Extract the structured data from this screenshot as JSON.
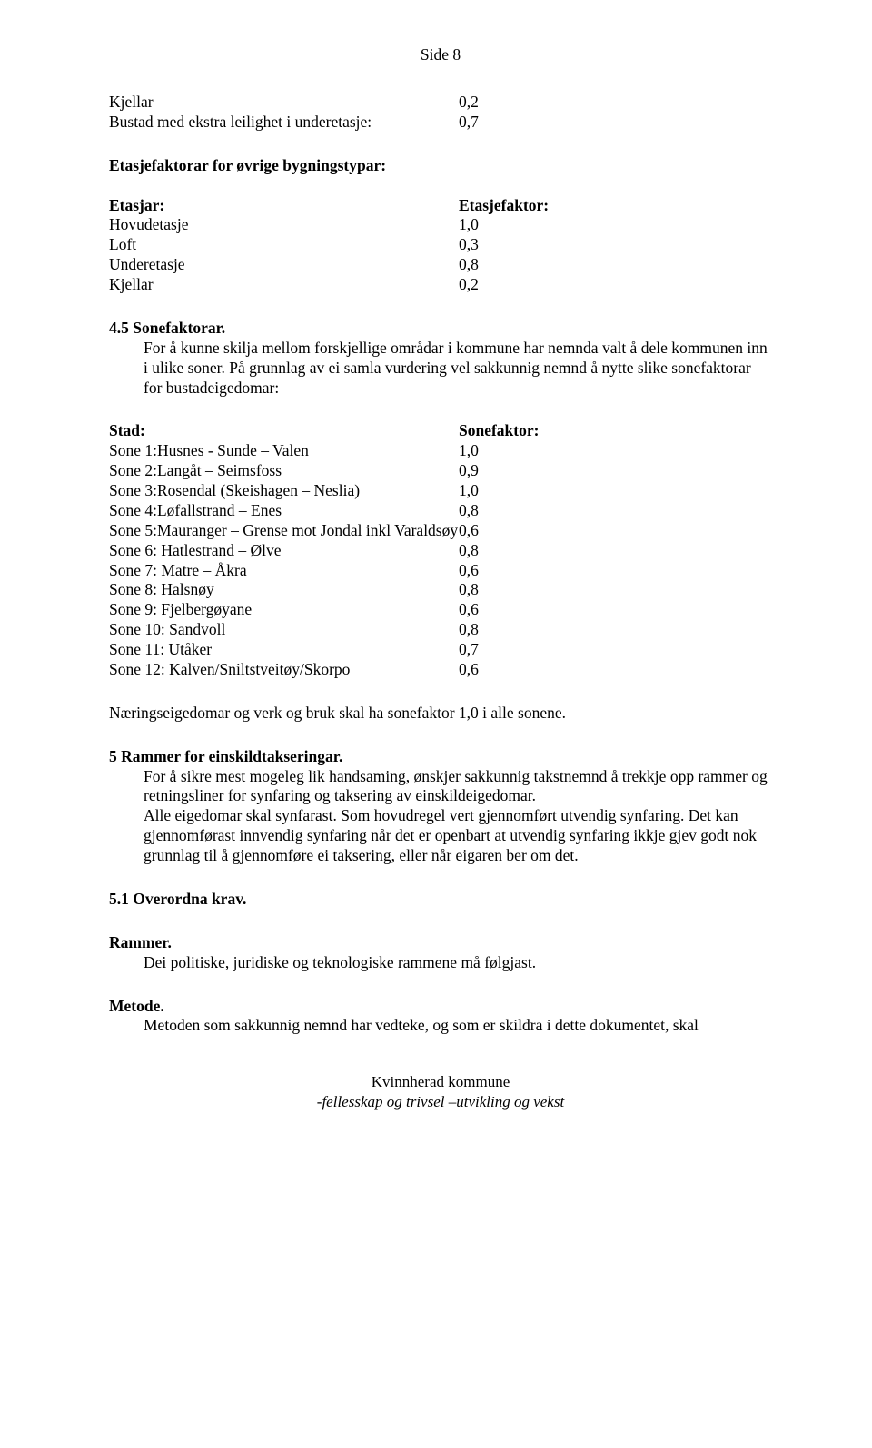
{
  "page_header": "Side 8",
  "table1": {
    "rows": [
      {
        "label": "Kjellar",
        "value": "0,2"
      },
      {
        "label": "Bustad med ekstra leilighet i underetasje:",
        "value": "0,7"
      }
    ]
  },
  "table2": {
    "title": "Etasjefaktorar for øvrige bygningstypar:",
    "header_label": "Etasjar:",
    "header_value": "Etasjefaktor:",
    "rows": [
      {
        "label": "Hovudetasje",
        "value": "1,0"
      },
      {
        "label": "Loft",
        "value": "0,3"
      },
      {
        "label": "Underetasje",
        "value": "0,8"
      },
      {
        "label": "Kjellar",
        "value": "0,2"
      }
    ]
  },
  "sec45": {
    "heading": "4.5 Sonefaktorar.",
    "para": "For å kunne skilja mellom forskjellige områdar i kommune har nemnda valt å dele kommunen inn i ulike soner. På grunnlag av ei samla vurdering vel sakkunnig nemnd å nytte slike sonefaktorar for bustadeigedomar:"
  },
  "table3": {
    "header_label": "Stad:",
    "header_value": "Sonefaktor:",
    "rows": [
      {
        "label": "Sone 1:Husnes - Sunde – Valen",
        "value": "1,0"
      },
      {
        "label": "Sone 2:Langåt – Seimsfoss",
        "value": "0,9"
      },
      {
        "label": "Sone 3:Rosendal (Skeishagen – Neslia)",
        "value": "1,0"
      },
      {
        "label": "Sone 4:Løfallstrand – Enes",
        "value": "0,8"
      },
      {
        "label": "Sone 5:Mauranger – Grense mot Jondal inkl Varaldsøy",
        "value": "0,6"
      },
      {
        "label": "Sone 6: Hatlestrand – Ølve",
        "value": "0,8"
      },
      {
        "label": "Sone 7: Matre – Åkra",
        "value": "0,6"
      },
      {
        "label": "Sone 8: Halsnøy",
        "value": "0,8"
      },
      {
        "label": "Sone 9: Fjelbergøyane",
        "value": "0,6"
      },
      {
        "label": "Sone 10: Sandvoll",
        "value": "0,8"
      },
      {
        "label": "Sone 11: Utåker",
        "value": "0,7"
      },
      {
        "label": "Sone 12: Kalven/Sniltstveitøy/Skorpo",
        "value": "0,6"
      }
    ]
  },
  "naering": "Næringseigedomar og verk og bruk skal ha sonefaktor 1,0  i alle  sonene.",
  "sec5": {
    "heading": "5 Rammer for einskildtakseringar.",
    "para": "For å sikre mest mogeleg lik handsaming, ønskjer sakkunnig takstnemnd å trekkje opp rammer og retningsliner for synfaring og taksering av einskildeigedomar.\nAlle eigedomar skal synfarast. Som hovudregel vert gjennomført utvendig synfaring. Det kan gjennomførast innvendig synfaring når det er openbart at utvendig synfaring ikkje gjev godt nok grunnlag til å gjennomføre ei taksering, eller når eigaren ber om det."
  },
  "sec51": {
    "heading": "5.1 Overordna krav."
  },
  "rammer": {
    "heading": "Rammer.",
    "para": "Dei politiske, juridiske og teknologiske rammene må følgjast."
  },
  "metode": {
    "heading": "Metode.",
    "para": "Metoden som sakkunnig nemnd har vedteke, og som er skildra i dette dokumentet, skal"
  },
  "footer": {
    "line1": "Kvinnherad kommune",
    "line2": "-fellesskap og trivsel –utvikling og vekst"
  }
}
